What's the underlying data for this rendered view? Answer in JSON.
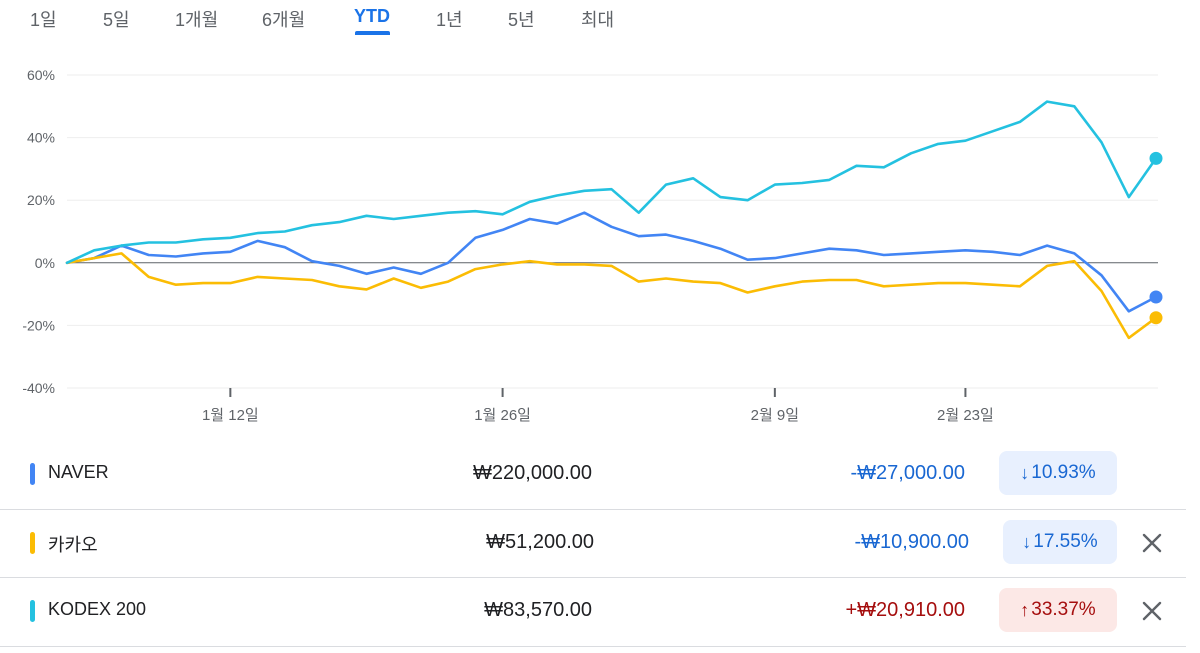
{
  "tabs": [
    {
      "label": "1일",
      "active": false
    },
    {
      "label": "5일",
      "active": false
    },
    {
      "label": "1개월",
      "active": false
    },
    {
      "label": "6개월",
      "active": false
    },
    {
      "label": "YTD",
      "active": true
    },
    {
      "label": "1년",
      "active": false
    },
    {
      "label": "5년",
      "active": false
    },
    {
      "label": "최대",
      "active": false
    }
  ],
  "chart_data": {
    "type": "line",
    "ylim": [
      -40,
      60
    ],
    "yticks": [
      -40,
      -20,
      0,
      20,
      40,
      60
    ],
    "ytick_labels": [
      "-40%",
      "-20%",
      "0%",
      "20%",
      "40%",
      "60%"
    ],
    "xticks": [
      {
        "index": 6,
        "label": "1월 12일"
      },
      {
        "index": 16,
        "label": "1월 26일"
      },
      {
        "index": 26,
        "label": "2월 9일"
      },
      {
        "index": 33,
        "label": "2월 23일"
      }
    ],
    "grid": true,
    "series": [
      {
        "name": "NAVER",
        "color": "#4285f4",
        "values": [
          0,
          1.5,
          5.5,
          2.5,
          2,
          3,
          3.5,
          7,
          5,
          0.5,
          -1,
          -3.5,
          -1.5,
          -3.5,
          0,
          8,
          10.5,
          14,
          12.5,
          16,
          11.5,
          8.5,
          9,
          7,
          4.5,
          1,
          1.5,
          3,
          4.5,
          4,
          2.5,
          3,
          3.5,
          4,
          3.5,
          2.5,
          5.5,
          3,
          -4,
          -15.5,
          -10.93
        ]
      },
      {
        "name": "카카오",
        "color": "#fbbc04",
        "values": [
          0,
          1.5,
          3,
          -4.5,
          -7,
          -6.5,
          -6.5,
          -4.5,
          -5,
          -5.5,
          -7.5,
          -8.5,
          -5,
          -8,
          -6,
          -2,
          -0.5,
          0.5,
          -0.5,
          -0.5,
          -1,
          -6,
          -5,
          -6,
          -6.5,
          -9.5,
          -7.5,
          -6,
          -5.5,
          -5.5,
          -7.5,
          -7,
          -6.5,
          -6.5,
          -7,
          -7.5,
          -1,
          0.5,
          -9,
          -24,
          -17.55
        ]
      },
      {
        "name": "KODEX 200",
        "color": "#24c1e0",
        "values": [
          0,
          4,
          5.5,
          6.5,
          6.5,
          7.5,
          8,
          9.5,
          10,
          12,
          13,
          15,
          14,
          15,
          16,
          16.5,
          15.5,
          19.5,
          21.5,
          23,
          23.5,
          16,
          25,
          27,
          21,
          20,
          25,
          25.5,
          26.5,
          31,
          30.5,
          35,
          38,
          39,
          42,
          45,
          51.5,
          50,
          38.5,
          21,
          33.37
        ]
      }
    ]
  },
  "rows": [
    {
      "name": "NAVER",
      "color": "#4285f4",
      "price": "₩220,000.00",
      "change": "-₩27,000.00",
      "percent": "10.93%",
      "arrow": "↓",
      "direction": "down",
      "closable": false
    },
    {
      "name": "카카오",
      "color": "#fbbc04",
      "price": "₩51,200.00",
      "change": "-₩10,900.00",
      "percent": "17.55%",
      "arrow": "↓",
      "direction": "down",
      "closable": true
    },
    {
      "name": "KODEX 200",
      "color": "#24c1e0",
      "price": "₩83,570.00",
      "change": "+₩20,910.00",
      "percent": "33.37%",
      "arrow": "↑",
      "direction": "up",
      "closable": true
    }
  ]
}
